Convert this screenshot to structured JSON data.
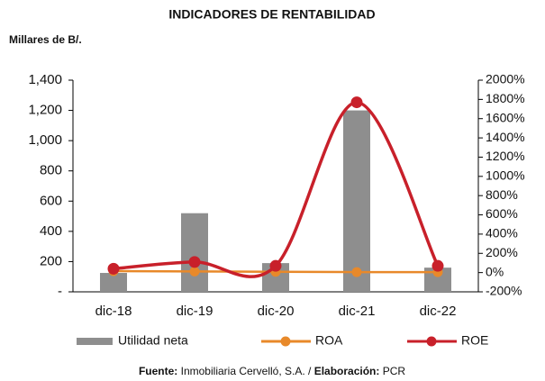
{
  "chart_data": {
    "type": "bar-line",
    "title": "INDICADORES DE RENTABILIDAD",
    "y_axis_label": "Millares de B/.",
    "categories": [
      "dic-18",
      "dic-19",
      "dic-20",
      "dic-21",
      "dic-22"
    ],
    "series": [
      {
        "name": "Utilidad neta",
        "type": "bar",
        "color": "#8e8e8e",
        "values": [
          125,
          520,
          190,
          1200,
          160
        ]
      },
      {
        "name": "ROA",
        "type": "line",
        "axis": "y2",
        "color": "#e8892a",
        "values": [
          15,
          12,
          8,
          5,
          5
        ]
      },
      {
        "name": "ROE",
        "type": "line",
        "axis": "y2",
        "smooth": true,
        "color": "#c8202a",
        "values": [
          40,
          110,
          70,
          1770,
          70
        ]
      }
    ],
    "ylim": [
      0,
      1400
    ],
    "yticks": [
      {
        "value": 0,
        "label": "-"
      },
      200,
      400,
      600,
      800,
      {
        "value": 1000,
        "label": "1,000"
      },
      {
        "value": 1200,
        "label": "1,200"
      },
      {
        "value": 1400,
        "label": "1,400"
      }
    ],
    "y2lim": [
      -200,
      2000
    ],
    "y2ticks": [
      {
        "value": -200,
        "label": "-200%"
      },
      {
        "value": 0,
        "label": "0%"
      },
      {
        "value": 200,
        "label": "200%"
      },
      {
        "value": 400,
        "label": "400%"
      },
      {
        "value": 600,
        "label": "600%"
      },
      {
        "value": 800,
        "label": "800%"
      },
      {
        "value": 1000,
        "label": "1000%"
      },
      {
        "value": 1200,
        "label": "1200%"
      },
      {
        "value": 1400,
        "label": "1400%"
      },
      {
        "value": 1600,
        "label": "1600%"
      },
      {
        "value": 1800,
        "label": "1800%"
      },
      {
        "value": 2000,
        "label": "2000%"
      }
    ],
    "footnote": [
      {
        "text": "Fuente:",
        "bold": true
      },
      {
        "text": " Inmobiliaria Cervelló, S.A. / ",
        "bold": false
      },
      {
        "text": "Elaboración:",
        "bold": true
      },
      {
        "text": " PCR",
        "bold": false
      }
    ]
  }
}
